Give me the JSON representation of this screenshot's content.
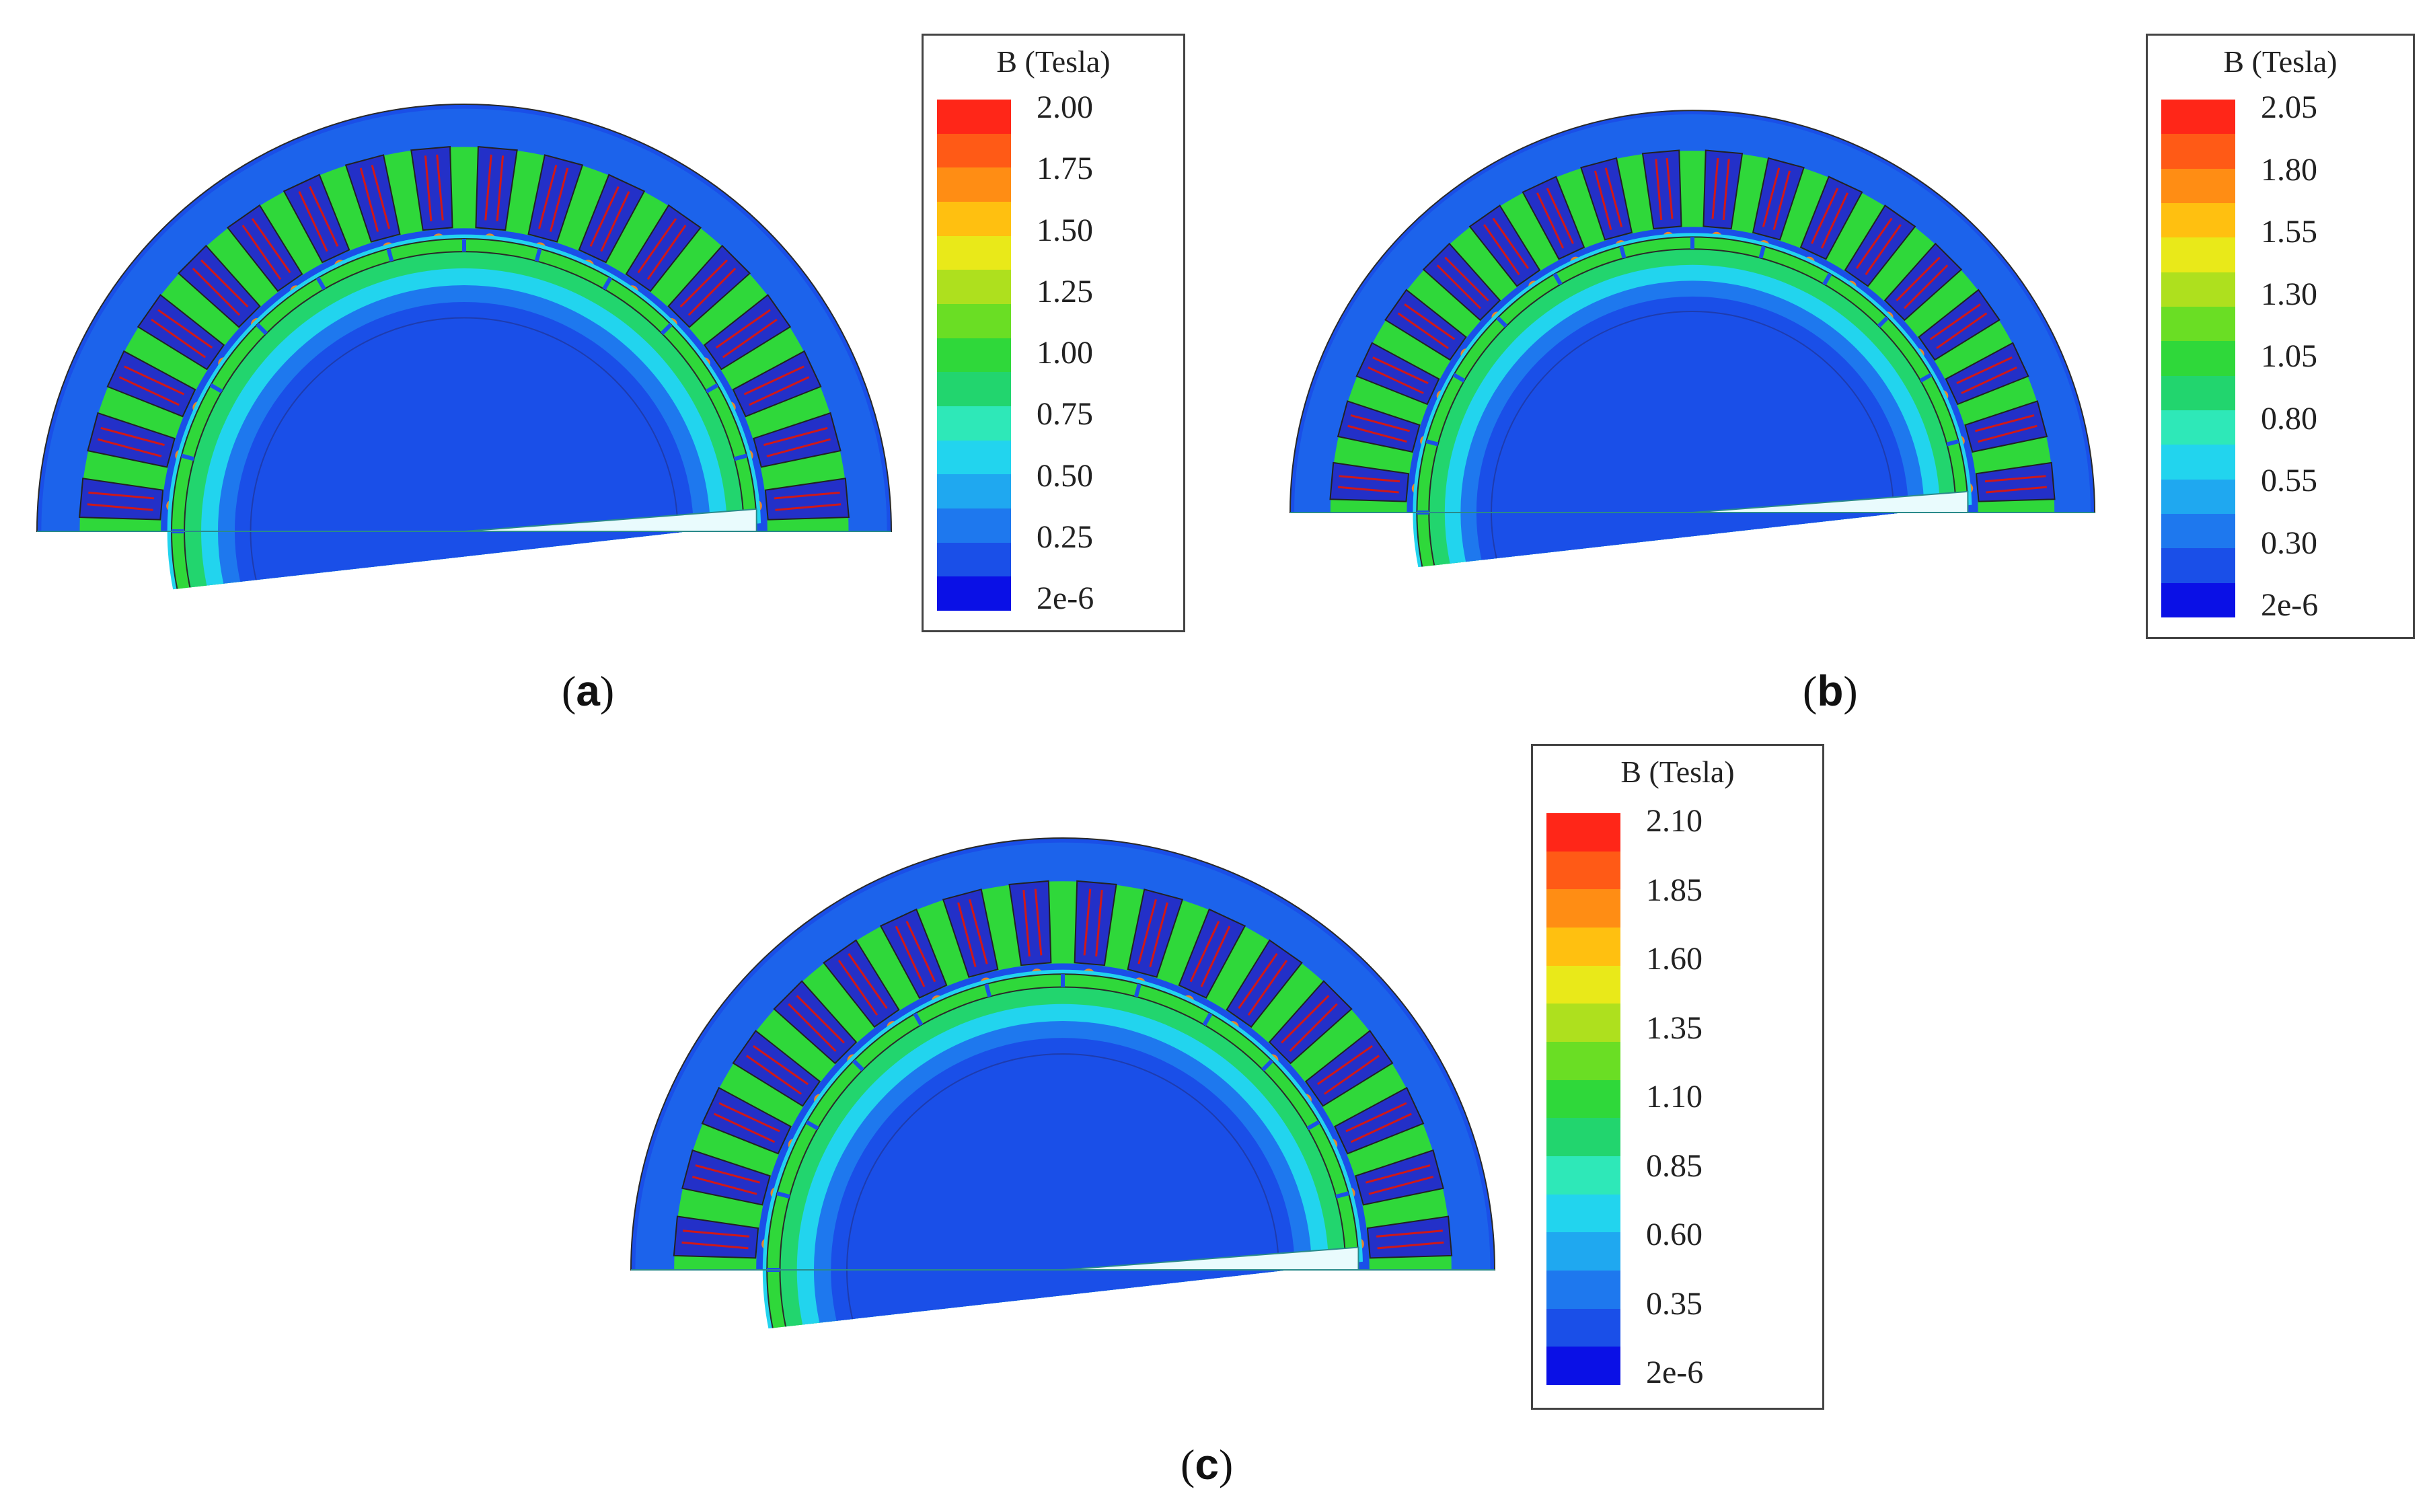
{
  "panels": [
    {
      "id": "a",
      "caption_open": "(",
      "caption_letter": "a",
      "caption_close": ")",
      "legend_title": "B (Tesla)",
      "legend_ticks": [
        "2.00",
        "1.75",
        "1.50",
        "1.25",
        "1.00",
        "0.75",
        "0.50",
        "0.25",
        "2e-6"
      ],
      "rotor_shift_deg": 0
    },
    {
      "id": "b",
      "caption_open": "(",
      "caption_letter": "b",
      "caption_close": ")",
      "legend_title": "B (Tesla)",
      "legend_ticks": [
        "2.05",
        "1.80",
        "1.55",
        "1.30",
        "1.05",
        "0.80",
        "0.55",
        "0.30",
        "2e-6"
      ],
      "rotor_shift_deg": 0
    },
    {
      "id": "c",
      "caption_open": "(",
      "caption_letter": "c",
      "caption_close": ")",
      "legend_title": "B (Tesla)",
      "legend_ticks": [
        "2.10",
        "1.85",
        "1.60",
        "1.35",
        "1.10",
        "0.85",
        "0.60",
        "0.35",
        "2e-6"
      ],
      "rotor_shift_deg": 0
    }
  ],
  "colors": {
    "scale": [
      "#0a10e6",
      "#1a4fe8",
      "#1e78ee",
      "#1fa8f0",
      "#22d4ee",
      "#2ee8b8",
      "#22d56e",
      "#2fd83a",
      "#6ade24",
      "#aee01e",
      "#e9e919",
      "#ffc010",
      "#ff8d14",
      "#ff5a16",
      "#ff2618"
    ],
    "background_field": "#1a4fe8",
    "yoke_field": "#1e78ee",
    "tooth_field": "#2fd83a",
    "slot_fill": "#2330c8",
    "coil_line": "#d01818",
    "airgap_band": "#22d4ee",
    "cut_fill": "#e9fbfd"
  }
}
